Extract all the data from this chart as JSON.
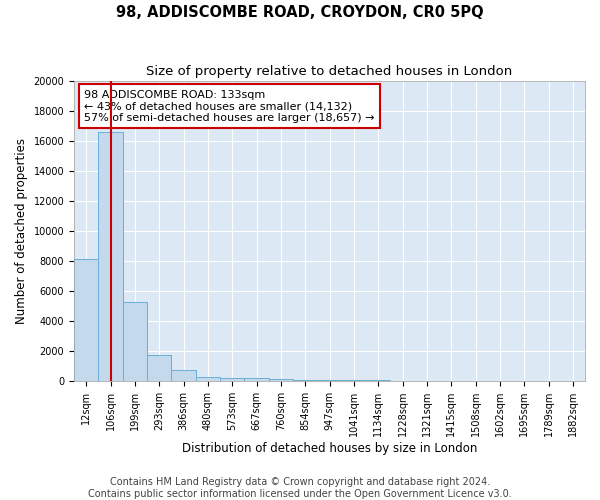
{
  "title": "98, ADDISCOMBE ROAD, CROYDON, CR0 5PQ",
  "subtitle": "Size of property relative to detached houses in London",
  "xlabel": "Distribution of detached houses by size in London",
  "ylabel": "Number of detached properties",
  "categories": [
    "12sqm",
    "106sqm",
    "199sqm",
    "293sqm",
    "386sqm",
    "480sqm",
    "573sqm",
    "667sqm",
    "760sqm",
    "854sqm",
    "947sqm",
    "1041sqm",
    "1134sqm",
    "1228sqm",
    "1321sqm",
    "1415sqm",
    "1508sqm",
    "1602sqm",
    "1695sqm",
    "1789sqm",
    "1882sqm"
  ],
  "values": [
    8100,
    16600,
    5300,
    1750,
    750,
    300,
    230,
    200,
    150,
    100,
    80,
    60,
    50,
    40,
    35,
    30,
    25,
    20,
    18,
    15,
    12
  ],
  "bar_color": "#c5d9ed",
  "bar_edge_color": "#6baed6",
  "vline_x": 1,
  "vline_color": "#cc0000",
  "annotation_text": "98 ADDISCOMBE ROAD: 133sqm\n← 43% of detached houses are smaller (14,132)\n57% of semi-detached houses are larger (18,657) →",
  "annotation_box_color": "#ffffff",
  "annotation_box_edge": "#cc0000",
  "ylim": [
    0,
    20000
  ],
  "yticks": [
    0,
    2000,
    4000,
    6000,
    8000,
    10000,
    12000,
    14000,
    16000,
    18000,
    20000
  ],
  "background_color": "#dce9f5",
  "grid_color": "#ffffff",
  "fig_background": "#ffffff",
  "footer_line1": "Contains HM Land Registry data © Crown copyright and database right 2024.",
  "footer_line2": "Contains public sector information licensed under the Open Government Licence v3.0.",
  "title_fontsize": 10.5,
  "subtitle_fontsize": 9.5,
  "axis_label_fontsize": 8.5,
  "tick_fontsize": 7.0,
  "annotation_fontsize": 8.0,
  "footer_fontsize": 7.0
}
